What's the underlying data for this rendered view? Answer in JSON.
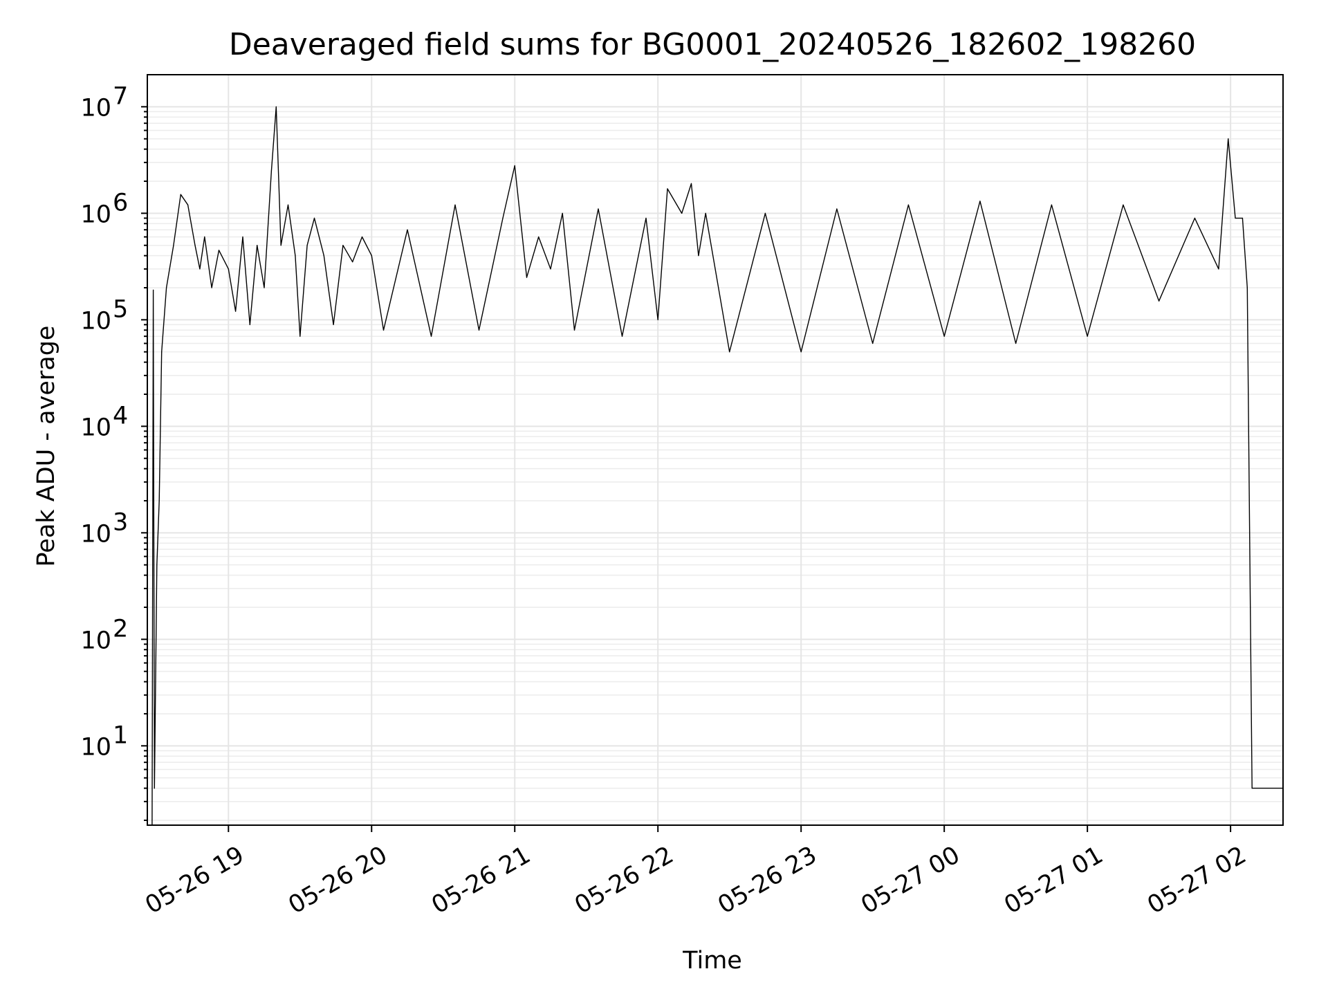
{
  "chart_data": {
    "type": "line",
    "title": "Deaveraged field sums for BG0001_20240526_182602_198260",
    "xlabel": "Time",
    "ylabel": "Peak ADU - average",
    "yscale": "log",
    "xlim": [
      "2024-05-26 18:26",
      "2024-05-27 02:22"
    ],
    "ylim": [
      1.8,
      20000000
    ],
    "grid": true,
    "x_ticks": [
      {
        "t": "2024-05-26 19:00",
        "label": "05-26 19"
      },
      {
        "t": "2024-05-26 20:00",
        "label": "05-26 20"
      },
      {
        "t": "2024-05-26 21:00",
        "label": "05-26 21"
      },
      {
        "t": "2024-05-26 22:00",
        "label": "05-26 22"
      },
      {
        "t": "2024-05-26 23:00",
        "label": "05-26 23"
      },
      {
        "t": "2024-05-27 00:00",
        "label": "05-27 00"
      },
      {
        "t": "2024-05-27 01:00",
        "label": "05-27 01"
      },
      {
        "t": "2024-05-27 02:00",
        "label": "05-27 02"
      }
    ],
    "y_ticks": [
      {
        "value": 10,
        "base": "10",
        "exp": "1"
      },
      {
        "value": 100,
        "base": "10",
        "exp": "2"
      },
      {
        "value": 1000,
        "base": "10",
        "exp": "3"
      },
      {
        "value": 10000,
        "base": "10",
        "exp": "4"
      },
      {
        "value": 100000,
        "base": "10",
        "exp": "5"
      },
      {
        "value": 1000000,
        "base": "10",
        "exp": "6"
      },
      {
        "value": 10000000,
        "base": "10",
        "exp": "7"
      }
    ],
    "series": [
      {
        "color": "#000000",
        "points": [
          [
            "2024-05-26 18:28",
            1.8
          ],
          [
            "2024-05-26 18:28:30",
            190000
          ],
          [
            "2024-05-26 18:29",
            4
          ],
          [
            "2024-05-26 18:30",
            500
          ],
          [
            "2024-05-26 18:31",
            2000
          ],
          [
            "2024-05-26 18:32",
            50000
          ],
          [
            "2024-05-26 18:34",
            200000
          ],
          [
            "2024-05-26 18:37",
            500000
          ],
          [
            "2024-05-26 18:40",
            1500000
          ],
          [
            "2024-05-26 18:43",
            1200000
          ],
          [
            "2024-05-26 18:46",
            500000
          ],
          [
            "2024-05-26 18:48",
            300000
          ],
          [
            "2024-05-26 18:50",
            600000
          ],
          [
            "2024-05-26 18:53",
            200000
          ],
          [
            "2024-05-26 18:56",
            450000
          ],
          [
            "2024-05-26 19:00",
            300000
          ],
          [
            "2024-05-26 19:03",
            120000
          ],
          [
            "2024-05-26 19:06",
            600000
          ],
          [
            "2024-05-26 19:09",
            90000
          ],
          [
            "2024-05-26 19:12",
            500000
          ],
          [
            "2024-05-26 19:15",
            200000
          ],
          [
            "2024-05-26 19:18",
            2500000
          ],
          [
            "2024-05-26 19:20",
            10000000
          ],
          [
            "2024-05-26 19:22",
            500000
          ],
          [
            "2024-05-26 19:25",
            1200000
          ],
          [
            "2024-05-26 19:28",
            400000
          ],
          [
            "2024-05-26 19:30",
            70000
          ],
          [
            "2024-05-26 19:33",
            500000
          ],
          [
            "2024-05-26 19:36",
            900000
          ],
          [
            "2024-05-26 19:40",
            400000
          ],
          [
            "2024-05-26 19:44",
            90000
          ],
          [
            "2024-05-26 19:48",
            500000
          ],
          [
            "2024-05-26 19:52",
            350000
          ],
          [
            "2024-05-26 19:56",
            600000
          ],
          [
            "2024-05-26 20:00",
            400000
          ],
          [
            "2024-05-26 20:05",
            80000
          ],
          [
            "2024-05-26 20:15",
            700000
          ],
          [
            "2024-05-26 20:25",
            70000
          ],
          [
            "2024-05-26 20:35",
            1200000
          ],
          [
            "2024-05-26 20:45",
            80000
          ],
          [
            "2024-05-26 20:55",
            900000
          ],
          [
            "2024-05-26 21:00",
            2800000
          ],
          [
            "2024-05-26 21:05",
            250000
          ],
          [
            "2024-05-26 21:10",
            600000
          ],
          [
            "2024-05-26 21:15",
            300000
          ],
          [
            "2024-05-26 21:20",
            1000000
          ],
          [
            "2024-05-26 21:25",
            80000
          ],
          [
            "2024-05-26 21:35",
            1100000
          ],
          [
            "2024-05-26 21:45",
            70000
          ],
          [
            "2024-05-26 21:55",
            900000
          ],
          [
            "2024-05-26 22:00",
            100000
          ],
          [
            "2024-05-26 22:04",
            1700000
          ],
          [
            "2024-05-26 22:10",
            1000000
          ],
          [
            "2024-05-26 22:14",
            1900000
          ],
          [
            "2024-05-26 22:17",
            400000
          ],
          [
            "2024-05-26 22:20",
            1000000
          ],
          [
            "2024-05-26 22:30",
            50000
          ],
          [
            "2024-05-26 22:45",
            1000000
          ],
          [
            "2024-05-26 23:00",
            50000
          ],
          [
            "2024-05-26 23:15",
            1100000
          ],
          [
            "2024-05-26 23:30",
            60000
          ],
          [
            "2024-05-26 23:45",
            1200000
          ],
          [
            "2024-05-27 00:00",
            70000
          ],
          [
            "2024-05-27 00:15",
            1300000
          ],
          [
            "2024-05-27 00:30",
            60000
          ],
          [
            "2024-05-27 00:45",
            1200000
          ],
          [
            "2024-05-27 01:00",
            70000
          ],
          [
            "2024-05-27 01:15",
            1200000
          ],
          [
            "2024-05-27 01:30",
            150000
          ],
          [
            "2024-05-27 01:45",
            900000
          ],
          [
            "2024-05-27 01:55",
            300000
          ],
          [
            "2024-05-27 01:59",
            5000000
          ],
          [
            "2024-05-27 02:02",
            900000
          ],
          [
            "2024-05-27 02:05",
            900000
          ],
          [
            "2024-05-27 02:07",
            200000
          ],
          [
            "2024-05-27 02:09",
            4
          ],
          [
            "2024-05-27 02:22",
            4
          ]
        ]
      }
    ]
  }
}
